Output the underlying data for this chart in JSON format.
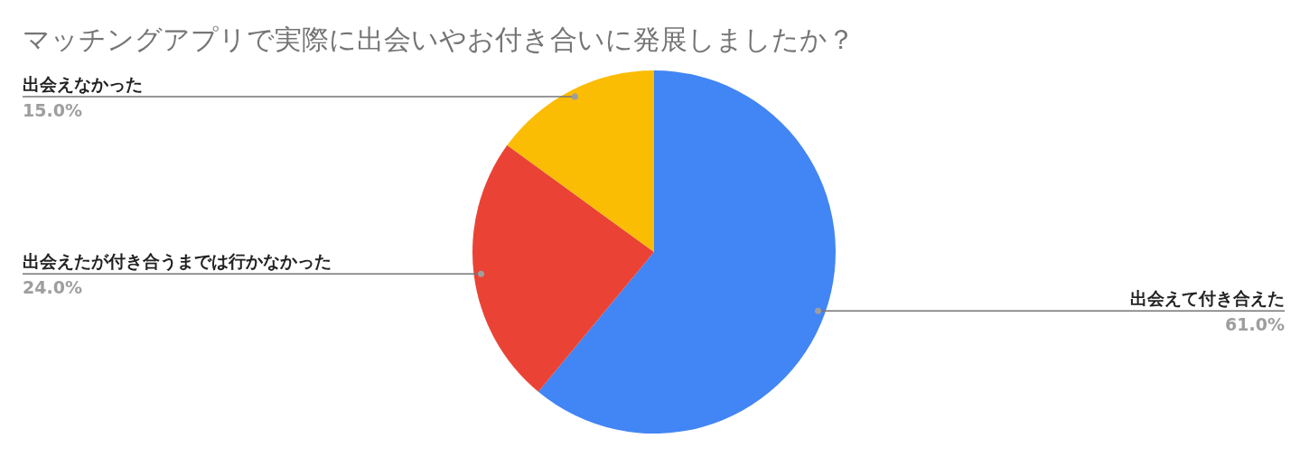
{
  "chart_data": {
    "type": "pie",
    "title": "マッチングアプリで実際に出会いやお付き合いに発展しましたか？",
    "categories": [
      "出会えて付き合えた",
      "出会えたが付き合うまでは行かなかった",
      "出会えなかった"
    ],
    "values": [
      61.0,
      24.0,
      15.0
    ],
    "value_labels": [
      "61.0%",
      "24.0%",
      "15.0%"
    ],
    "colors": [
      "#4285f4",
      "#ea4335",
      "#fbbc04"
    ]
  }
}
